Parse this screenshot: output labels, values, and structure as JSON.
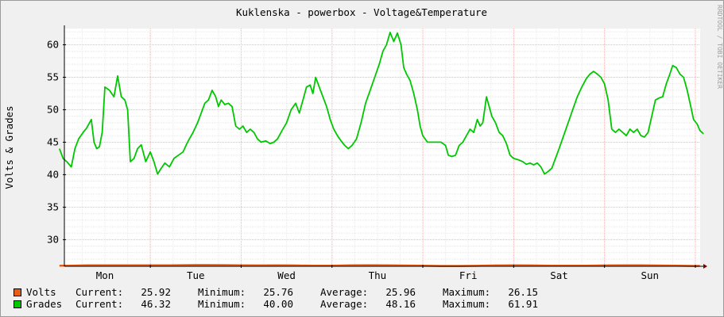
{
  "chart_data": {
    "type": "line",
    "title": "Kuklenska - powerbox - Voltage&Temperature",
    "ylabel": "Volts & Grades",
    "watermark": "RRDTOOL / TOBI OETIKER",
    "ylim": [
      25.9,
      62.5
    ],
    "yticks": [
      30,
      35,
      40,
      45,
      50,
      55,
      60
    ],
    "x_ticks": [
      "Mon",
      "Tue",
      "Wed",
      "Thu",
      "Fri",
      "Sat",
      "Sun"
    ],
    "grid": true,
    "series": [
      {
        "name": "Volts",
        "color": "#e85e13",
        "values": [
          [
            0.0,
            26.0
          ],
          [
            0.1,
            26.0
          ],
          [
            0.2,
            26.02
          ],
          [
            0.3,
            26.05
          ],
          [
            0.5,
            26.06
          ],
          [
            0.7,
            26.05
          ],
          [
            0.9,
            26.06
          ],
          [
            1.0,
            26.05
          ],
          [
            1.2,
            26.06
          ],
          [
            1.4,
            26.08
          ],
          [
            1.5,
            26.1
          ],
          [
            1.6,
            26.1
          ],
          [
            1.8,
            26.08
          ],
          [
            2.0,
            26.05
          ],
          [
            2.2,
            26.03
          ],
          [
            2.4,
            26.05
          ],
          [
            2.6,
            26.04
          ],
          [
            2.8,
            25.98
          ],
          [
            3.0,
            26.0
          ],
          [
            3.2,
            26.06
          ],
          [
            3.4,
            26.07
          ],
          [
            3.6,
            26.05
          ],
          [
            3.8,
            26.02
          ],
          [
            4.0,
            25.98
          ],
          [
            4.2,
            25.95
          ],
          [
            4.4,
            25.95
          ],
          [
            4.6,
            25.97
          ],
          [
            4.8,
            26.04
          ],
          [
            5.0,
            26.05
          ],
          [
            5.2,
            26.04
          ],
          [
            5.4,
            25.98
          ],
          [
            5.6,
            25.98
          ],
          [
            5.8,
            26.0
          ],
          [
            6.0,
            26.04
          ],
          [
            6.2,
            26.06
          ],
          [
            6.4,
            26.05
          ],
          [
            6.6,
            26.02
          ],
          [
            6.8,
            25.98
          ],
          [
            7.0,
            25.95
          ],
          [
            7.05,
            25.96
          ]
        ]
      },
      {
        "name": "Grades",
        "color": "#00c800",
        "values": [
          [
            0.0,
            44.0
          ],
          [
            0.04,
            42.5
          ],
          [
            0.08,
            42.0
          ],
          [
            0.13,
            41.2
          ],
          [
            0.17,
            44.0
          ],
          [
            0.21,
            45.5
          ],
          [
            0.26,
            46.5
          ],
          [
            0.3,
            47.2
          ],
          [
            0.35,
            48.5
          ],
          [
            0.38,
            45.0
          ],
          [
            0.41,
            44.0
          ],
          [
            0.44,
            44.3
          ],
          [
            0.47,
            46.5
          ],
          [
            0.5,
            53.5
          ],
          [
            0.55,
            53.0
          ],
          [
            0.6,
            52.0
          ],
          [
            0.64,
            55.2
          ],
          [
            0.68,
            52.0
          ],
          [
            0.72,
            51.5
          ],
          [
            0.75,
            50.0
          ],
          [
            0.78,
            42.0
          ],
          [
            0.82,
            42.5
          ],
          [
            0.86,
            44.0
          ],
          [
            0.9,
            44.6
          ],
          [
            0.95,
            42.0
          ],
          [
            1.0,
            43.5
          ],
          [
            1.04,
            42.0
          ],
          [
            1.08,
            40.1
          ],
          [
            1.12,
            41.0
          ],
          [
            1.16,
            41.8
          ],
          [
            1.21,
            41.2
          ],
          [
            1.26,
            42.5
          ],
          [
            1.31,
            43.0
          ],
          [
            1.36,
            43.5
          ],
          [
            1.41,
            45.0
          ],
          [
            1.47,
            46.5
          ],
          [
            1.52,
            48.0
          ],
          [
            1.56,
            49.5
          ],
          [
            1.6,
            51.0
          ],
          [
            1.64,
            51.5
          ],
          [
            1.68,
            53.0
          ],
          [
            1.72,
            52.0
          ],
          [
            1.75,
            50.5
          ],
          [
            1.78,
            51.5
          ],
          [
            1.82,
            50.8
          ],
          [
            1.86,
            51.0
          ],
          [
            1.9,
            50.5
          ],
          [
            1.94,
            47.5
          ],
          [
            1.98,
            47.0
          ],
          [
            2.02,
            47.5
          ],
          [
            2.06,
            46.5
          ],
          [
            2.1,
            47.0
          ],
          [
            2.14,
            46.5
          ],
          [
            2.18,
            45.5
          ],
          [
            2.22,
            45.0
          ],
          [
            2.27,
            45.2
          ],
          [
            2.32,
            44.8
          ],
          [
            2.36,
            45.0
          ],
          [
            2.4,
            45.5
          ],
          [
            2.45,
            46.8
          ],
          [
            2.5,
            48.0
          ],
          [
            2.55,
            50.0
          ],
          [
            2.6,
            51.0
          ],
          [
            2.64,
            49.5
          ],
          [
            2.68,
            51.5
          ],
          [
            2.72,
            53.5
          ],
          [
            2.76,
            53.8
          ],
          [
            2.79,
            52.5
          ],
          [
            2.82,
            55.0
          ],
          [
            2.86,
            53.5
          ],
          [
            2.9,
            52.0
          ],
          [
            2.94,
            50.5
          ],
          [
            2.98,
            48.5
          ],
          [
            3.02,
            47.0
          ],
          [
            3.06,
            46.0
          ],
          [
            3.1,
            45.2
          ],
          [
            3.14,
            44.5
          ],
          [
            3.18,
            44.0
          ],
          [
            3.22,
            44.5
          ],
          [
            3.27,
            45.5
          ],
          [
            3.32,
            48.0
          ],
          [
            3.37,
            51.0
          ],
          [
            3.42,
            53.0
          ],
          [
            3.47,
            55.0
          ],
          [
            3.52,
            57.0
          ],
          [
            3.56,
            59.0
          ],
          [
            3.6,
            60.0
          ],
          [
            3.64,
            61.9
          ],
          [
            3.68,
            60.5
          ],
          [
            3.72,
            61.8
          ],
          [
            3.76,
            60.0
          ],
          [
            3.79,
            56.5
          ],
          [
            3.82,
            55.5
          ],
          [
            3.86,
            54.5
          ],
          [
            3.9,
            52.5
          ],
          [
            3.94,
            50.0
          ],
          [
            3.97,
            47.5
          ],
          [
            4.0,
            46.0
          ],
          [
            4.05,
            45.0
          ],
          [
            4.1,
            45.0
          ],
          [
            4.15,
            45.0
          ],
          [
            4.2,
            45.0
          ],
          [
            4.25,
            44.5
          ],
          [
            4.28,
            43.0
          ],
          [
            4.32,
            42.8
          ],
          [
            4.36,
            43.0
          ],
          [
            4.4,
            44.5
          ],
          [
            4.44,
            45.0
          ],
          [
            4.48,
            46.0
          ],
          [
            4.52,
            47.0
          ],
          [
            4.56,
            46.5
          ],
          [
            4.6,
            48.5
          ],
          [
            4.63,
            47.5
          ],
          [
            4.66,
            48.0
          ],
          [
            4.7,
            52.0
          ],
          [
            4.73,
            50.5
          ],
          [
            4.76,
            49.0
          ],
          [
            4.8,
            48.0
          ],
          [
            4.84,
            46.5
          ],
          [
            4.88,
            46.0
          ],
          [
            4.92,
            44.8
          ],
          [
            4.96,
            43.0
          ],
          [
            5.0,
            42.5
          ],
          [
            5.05,
            42.3
          ],
          [
            5.1,
            42.0
          ],
          [
            5.14,
            41.6
          ],
          [
            5.18,
            41.8
          ],
          [
            5.22,
            41.5
          ],
          [
            5.26,
            41.8
          ],
          [
            5.3,
            41.2
          ],
          [
            5.34,
            40.1
          ],
          [
            5.38,
            40.5
          ],
          [
            5.42,
            41.0
          ],
          [
            5.46,
            42.5
          ],
          [
            5.5,
            44.0
          ],
          [
            5.55,
            46.0
          ],
          [
            5.6,
            48.0
          ],
          [
            5.65,
            50.0
          ],
          [
            5.7,
            52.0
          ],
          [
            5.75,
            53.5
          ],
          [
            5.8,
            54.8
          ],
          [
            5.84,
            55.5
          ],
          [
            5.88,
            55.9
          ],
          [
            5.92,
            55.5
          ],
          [
            5.96,
            55.0
          ],
          [
            6.0,
            54.0
          ],
          [
            6.04,
            51.5
          ],
          [
            6.08,
            47.0
          ],
          [
            6.12,
            46.5
          ],
          [
            6.16,
            47.0
          ],
          [
            6.2,
            46.5
          ],
          [
            6.24,
            46.0
          ],
          [
            6.28,
            47.0
          ],
          [
            6.32,
            46.5
          ],
          [
            6.36,
            47.0
          ],
          [
            6.4,
            46.0
          ],
          [
            6.44,
            45.8
          ],
          [
            6.48,
            46.5
          ],
          [
            6.52,
            49.0
          ],
          [
            6.56,
            51.5
          ],
          [
            6.6,
            51.8
          ],
          [
            6.64,
            52.0
          ],
          [
            6.68,
            54.0
          ],
          [
            6.72,
            55.5
          ],
          [
            6.75,
            56.8
          ],
          [
            6.79,
            56.5
          ],
          [
            6.83,
            55.5
          ],
          [
            6.87,
            55.0
          ],
          [
            6.91,
            53.0
          ],
          [
            6.95,
            50.5
          ],
          [
            6.98,
            48.5
          ],
          [
            7.02,
            47.8
          ],
          [
            7.05,
            46.8
          ],
          [
            7.09,
            46.3
          ]
        ]
      }
    ]
  },
  "legend": {
    "rows": [
      {
        "name": "Volts",
        "color": "#e85e13",
        "current_label": "Current:",
        "current": "25.92",
        "minimum_label": "Minimum:",
        "minimum": "25.76",
        "average_label": "Average:",
        "average": "25.96",
        "maximum_label": "Maximum:",
        "maximum": "26.15"
      },
      {
        "name": "Grades",
        "color": "#00c800",
        "current_label": "Current:",
        "current": "46.32",
        "minimum_label": "Minimum:",
        "minimum": "40.00",
        "average_label": "Average:",
        "average": "48.16",
        "maximum_label": "Maximum:",
        "maximum": "61.91"
      }
    ]
  }
}
